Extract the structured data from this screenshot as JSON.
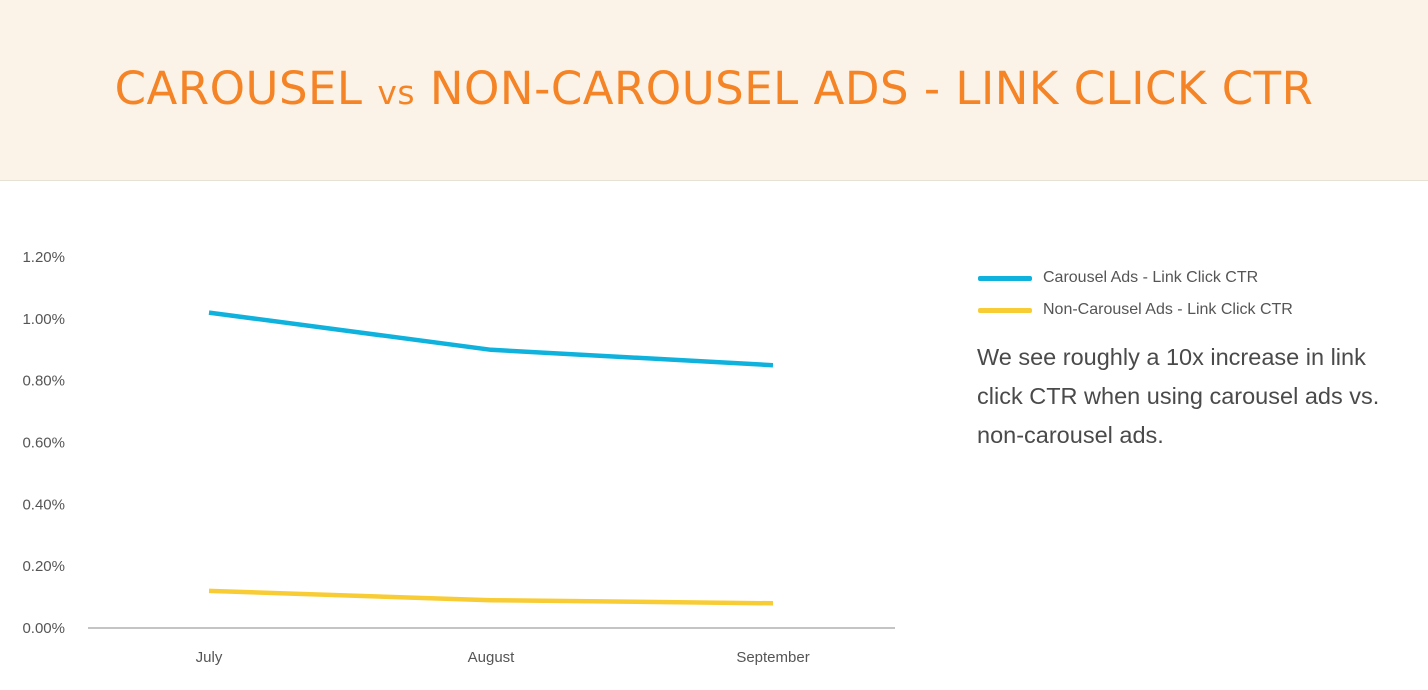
{
  "header": {
    "title_part1": "CAROUSEL ",
    "title_vs": "vs",
    "title_part2": " NON-CAROUSEL ADS - LINK CLICK CTR",
    "background_color": "#fcf3e8",
    "title_color": "#f58426"
  },
  "chart_data": {
    "type": "line",
    "categories": [
      "July",
      "August",
      "September"
    ],
    "series": [
      {
        "name": "Carousel Ads - Link Click CTR",
        "color": "#0fb2dc",
        "values": [
          1.02,
          0.9,
          0.85
        ]
      },
      {
        "name": "Non-Carousel Ads - Link Click CTR",
        "color": "#f8cc34",
        "values": [
          0.12,
          0.09,
          0.08
        ]
      }
    ],
    "y_ticks": [
      "0.00%",
      "0.20%",
      "0.40%",
      "0.60%",
      "0.80%",
      "1.00%",
      "1.20%"
    ],
    "ylim": [
      0,
      1.2
    ],
    "y_unit": "%",
    "grid": false,
    "legend_position": "right"
  },
  "legend": {
    "items": [
      {
        "label": "Carousel Ads - Link Click CTR",
        "color": "#0fb2dc"
      },
      {
        "label": "Non-Carousel Ads - Link Click CTR",
        "color": "#f8cc34"
      }
    ]
  },
  "note": {
    "text": "We see roughly a 10x increase in link click CTR when using carousel ads vs. non-carousel ads."
  }
}
